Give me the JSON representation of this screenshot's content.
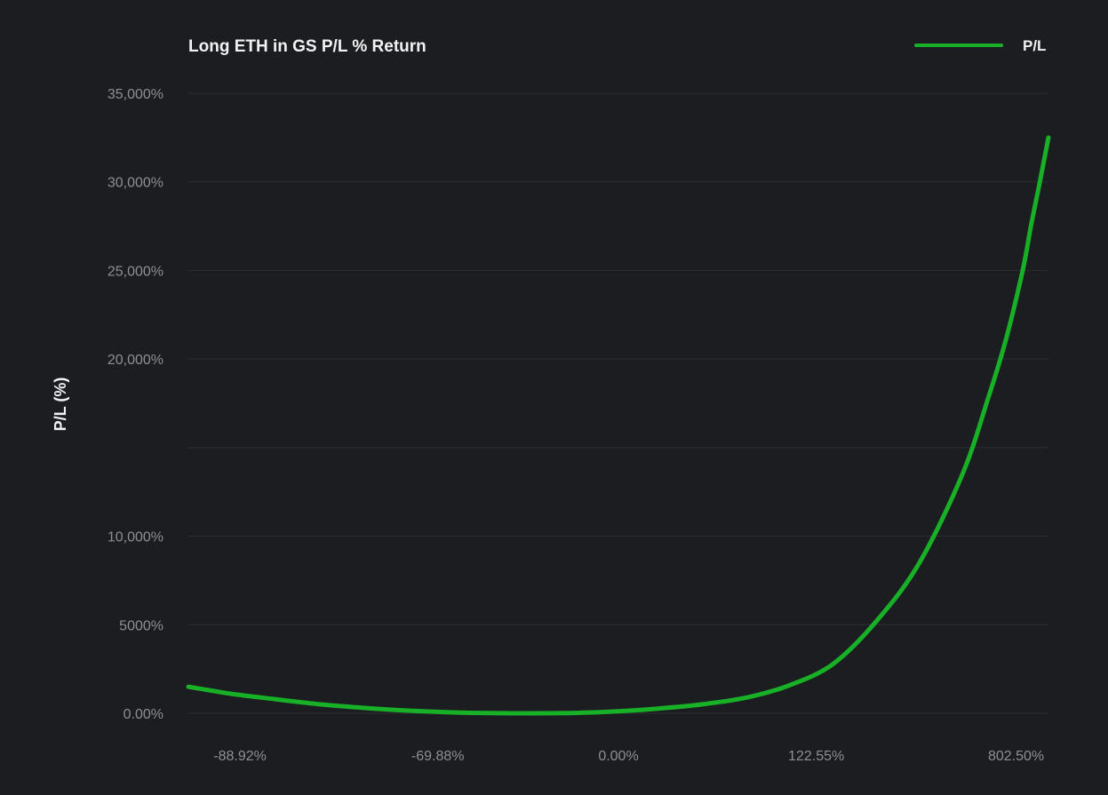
{
  "chart_data": {
    "type": "line",
    "title": "Long ETH in GS P/L % Return",
    "xlabel": "",
    "ylabel": "P/L (%)",
    "legend": {
      "position": "top-right",
      "entries": [
        "P/L"
      ]
    },
    "grid": {
      "x": false,
      "y": true
    },
    "ylim": [
      0,
      35000
    ],
    "y_ticks": [
      {
        "value": 0,
        "label": "0.00%"
      },
      {
        "value": 5000,
        "label": "5000%"
      },
      {
        "value": 10000,
        "label": "10,000%"
      },
      {
        "value": 15000,
        "label": ""
      },
      {
        "value": 20000,
        "label": "20,000%"
      },
      {
        "value": 25000,
        "label": "25,000%"
      },
      {
        "value": 30000,
        "label": "30,000%"
      },
      {
        "value": 35000,
        "label": "35,000%"
      }
    ],
    "x_ticks": [
      "-88.92%",
      "-69.88%",
      "0.00%",
      "122.55%",
      "802.50%"
    ],
    "x_tick_positions": [
      0.06,
      0.29,
      0.5,
      0.73,
      0.995
    ],
    "series": [
      {
        "name": "P/L",
        "color": "#17b026",
        "x": [
          0,
          0.05,
          0.1,
          0.15,
          0.2,
          0.25,
          0.3,
          0.35,
          0.4,
          0.45,
          0.5,
          0.55,
          0.6,
          0.65,
          0.7,
          0.75,
          0.8,
          0.85,
          0.9,
          0.93,
          0.95,
          0.97,
          0.98,
          0.99,
          1.0
        ],
        "y": [
          1500,
          1100,
          800,
          520,
          320,
          160,
          60,
          10,
          0,
          20,
          110,
          280,
          520,
          900,
          1600,
          2800,
          5200,
          8500,
          13500,
          17800,
          21000,
          25000,
          27600,
          30000,
          32500
        ]
      }
    ]
  }
}
